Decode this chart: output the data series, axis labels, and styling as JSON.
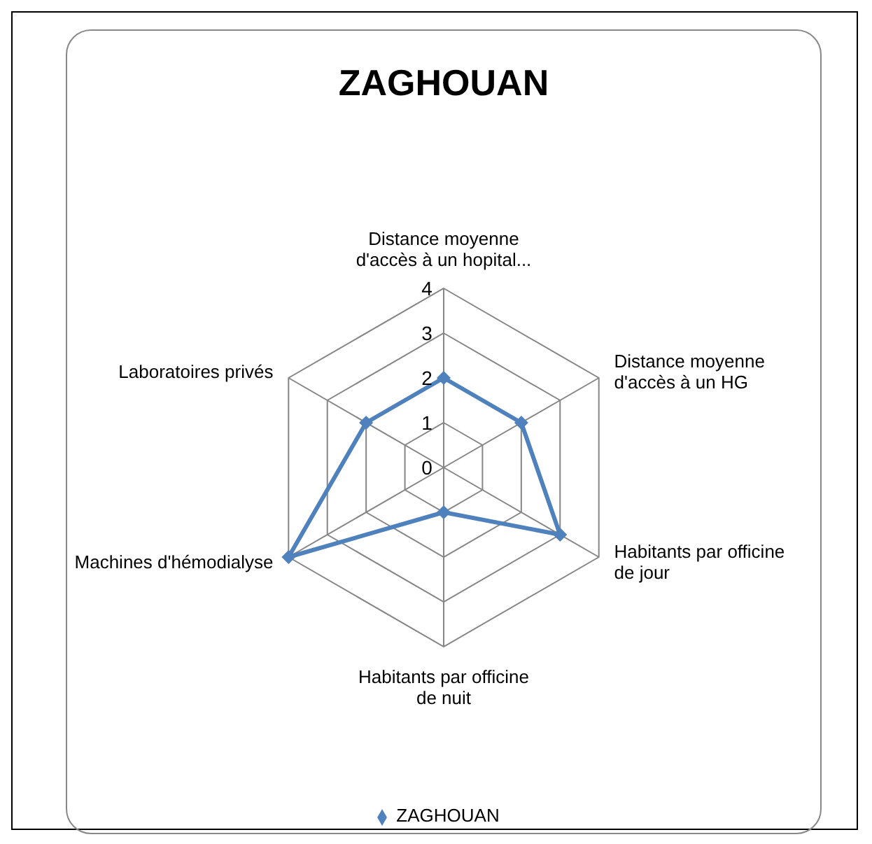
{
  "chart_data": {
    "type": "radar",
    "title": "ZAGHOUAN",
    "categories": [
      "Distance moyenne d'accès à un hopital...",
      "Distance moyenne d'accès à un HG",
      "Habitants par officine de jour",
      "Habitants par officine de nuit",
      "Machines d'hémodialyse",
      "Laboratoires privés"
    ],
    "series": [
      {
        "name": "ZAGHOUAN",
        "color": "#4f81bd",
        "values": [
          2,
          2,
          3,
          1,
          4,
          2
        ]
      }
    ],
    "ylim": [
      0,
      4
    ],
    "yticks": [
      0,
      1,
      2,
      3,
      4
    ],
    "grid": true,
    "legend": "bottom",
    "marker": "diamond"
  }
}
